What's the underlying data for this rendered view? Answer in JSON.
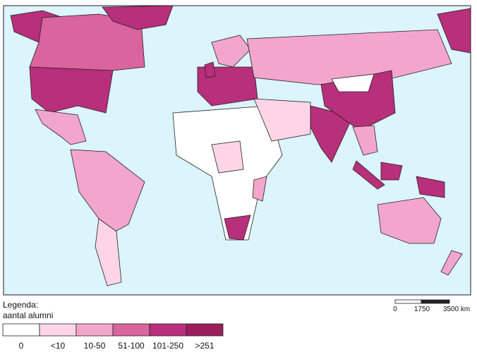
{
  "legend": {
    "title": "Legenda:",
    "subtitle": "aantal alumni",
    "classes": [
      {
        "label": "0",
        "color": "#ffffff"
      },
      {
        "label": "<10",
        "color": "#fdd5e6"
      },
      {
        "label": "10-50",
        "color": "#f3a6cb"
      },
      {
        "label": "51-100",
        "color": "#d9649e"
      },
      {
        "label": "101-250",
        "color": "#b82f7b"
      },
      {
        "label": ">251",
        "color": "#9b1e5b"
      }
    ]
  },
  "scale_bar": {
    "labels": [
      "0",
      "1750",
      "3500 km"
    ]
  }
}
